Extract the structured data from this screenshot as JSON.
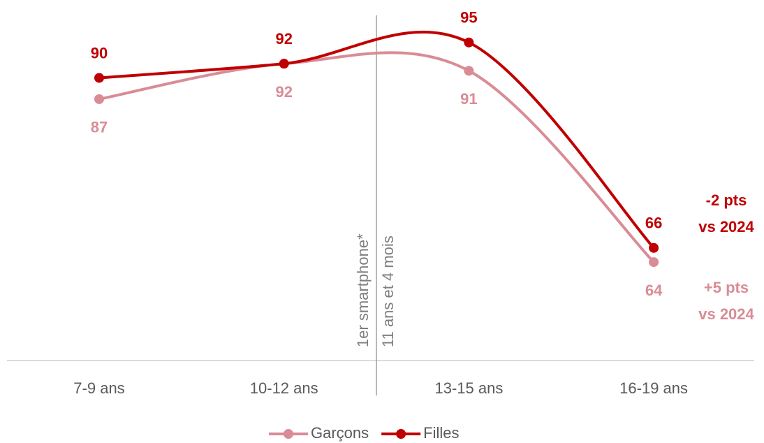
{
  "chart_data": {
    "type": "line",
    "categories": [
      "7-9 ans",
      "10-12 ans",
      "13-15 ans",
      "16-19 ans"
    ],
    "series": [
      {
        "name": "Garçons",
        "color": "#d98c96",
        "values": [
          87,
          92,
          91,
          64
        ]
      },
      {
        "name": "Filles",
        "color": "#c00000",
        "values": [
          90,
          92,
          95,
          66
        ]
      }
    ],
    "ylim": [
      50.1,
      100.5
    ],
    "reference_line": {
      "lines": [
        "1er  smartphone*",
        "11 ans et 4 mois"
      ]
    },
    "annotations": [
      {
        "lines": [
          "-2 pts",
          "vs 2024"
        ],
        "color": "#c00000"
      },
      {
        "lines": [
          "+5 pts",
          "vs 2024"
        ],
        "color": "#d98c96"
      }
    ],
    "legend": "bottom"
  }
}
